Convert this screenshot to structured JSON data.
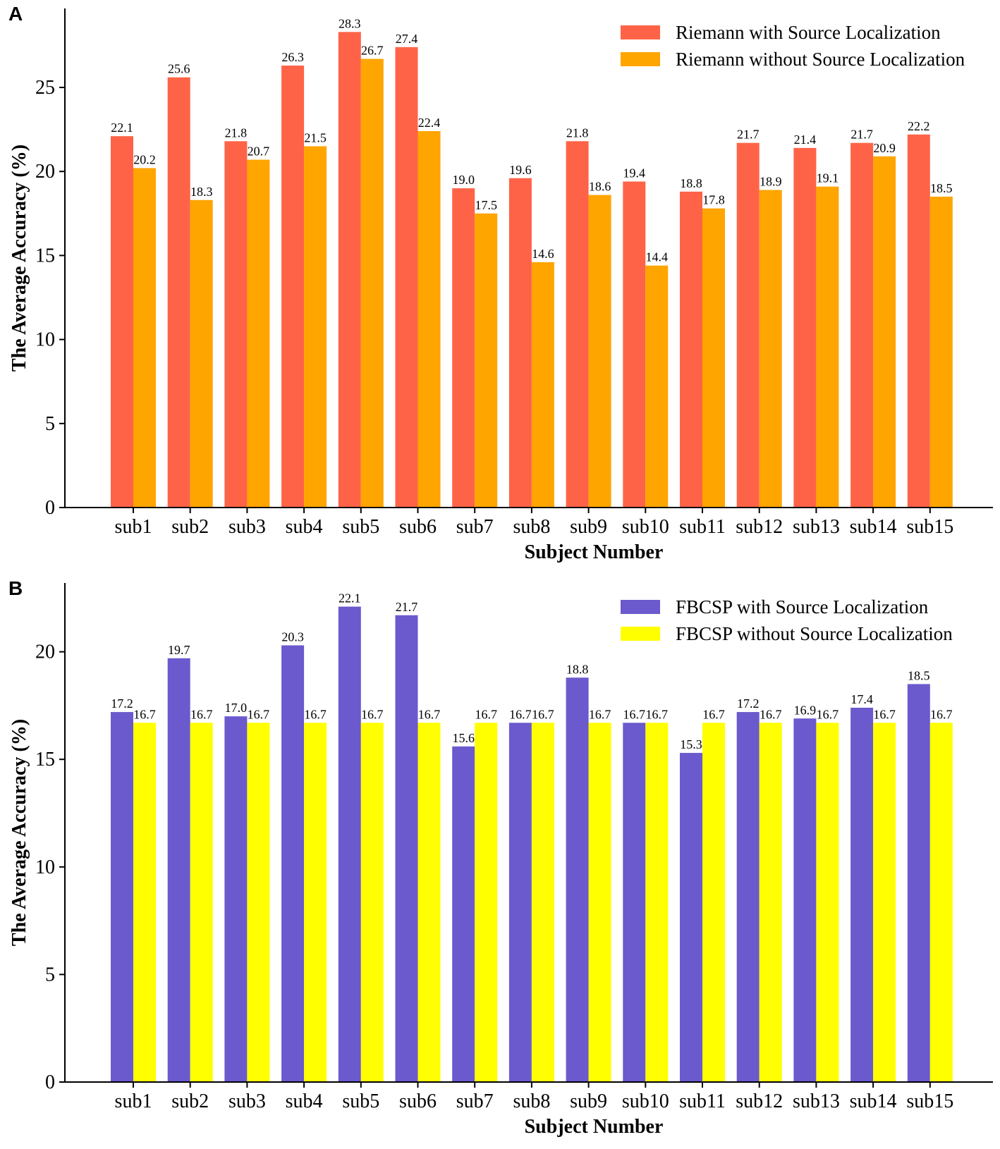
{
  "chart_data": [
    {
      "panel_label": "A",
      "type": "bar",
      "categories": [
        "sub1",
        "sub2",
        "sub3",
        "sub4",
        "sub5",
        "sub6",
        "sub7",
        "sub8",
        "sub9",
        "sub10",
        "sub11",
        "sub12",
        "sub13",
        "sub14",
        "sub15"
      ],
      "series": [
        {
          "name": "Riemann with Source Localization",
          "color": "#FF6347",
          "values": [
            22.1,
            25.6,
            21.8,
            26.3,
            28.3,
            27.4,
            19.0,
            19.6,
            21.8,
            19.4,
            18.8,
            21.7,
            21.4,
            21.7,
            22.2
          ],
          "labels": [
            "22.1",
            "25.6",
            "21.8",
            "26.3",
            "28.3",
            "27.4",
            "19.0",
            "19.6",
            "21.8",
            "19.4",
            "18.8",
            "21.7",
            "21.4",
            "21.7",
            "22.2"
          ]
        },
        {
          "name": "Riemann without Source Localization",
          "color": "#FFA500",
          "values": [
            20.2,
            18.3,
            20.7,
            21.5,
            26.7,
            22.4,
            17.5,
            14.6,
            18.6,
            14.4,
            17.8,
            18.9,
            19.1,
            20.9,
            18.5
          ],
          "labels": [
            "20.2",
            "18.3",
            "20.7",
            "21.5",
            "26.7",
            "22.4",
            "17.5",
            "14.6",
            "18.6",
            "14.4",
            "17.8",
            "18.9",
            "19.1",
            "20.9",
            "18.5"
          ]
        }
      ],
      "xlabel": "Subject Number",
      "ylabel": "The Average Accuracy (%)",
      "ylim": [
        0,
        29.7
      ],
      "yticks": [
        0,
        5,
        10,
        15,
        20,
        25
      ],
      "ytick_labels": [
        "0",
        "5",
        "10",
        "15",
        "20",
        "25"
      ],
      "legend_position": "top-right",
      "grid": false
    },
    {
      "panel_label": "B",
      "type": "bar",
      "categories": [
        "sub1",
        "sub2",
        "sub3",
        "sub4",
        "sub5",
        "sub6",
        "sub7",
        "sub8",
        "sub9",
        "sub10",
        "sub11",
        "sub12",
        "sub13",
        "sub14",
        "sub15"
      ],
      "series": [
        {
          "name": "FBCSP with Source Localization",
          "color": "#6A5ACD",
          "values": [
            17.2,
            19.7,
            17.0,
            20.3,
            22.1,
            21.7,
            15.6,
            16.7,
            18.8,
            16.7,
            15.3,
            17.2,
            16.9,
            17.4,
            18.5
          ],
          "labels": [
            "17.2",
            "19.7",
            "17.0",
            "20.3",
            "22.1",
            "21.7",
            "15.6",
            "16.7",
            "18.8",
            "16.7",
            "15.3",
            "17.2",
            "16.9",
            "17.4",
            "18.5"
          ]
        },
        {
          "name": "FBCSP without Source Localization",
          "color": "#FFFF00",
          "values": [
            16.7,
            16.7,
            16.7,
            16.7,
            16.7,
            16.7,
            16.7,
            16.7,
            16.7,
            16.7,
            16.7,
            16.7,
            16.7,
            16.7,
            16.7
          ],
          "labels": [
            "16.7",
            "16.7",
            "16.7",
            "16.7",
            "16.7",
            "16.7",
            "16.7",
            "16.7",
            "16.7",
            "16.7",
            "16.7",
            "16.7",
            "16.7",
            "16.7",
            "16.7"
          ]
        }
      ],
      "xlabel": "Subject Number",
      "ylabel": "The Average Accuracy (%)",
      "ylim": [
        0,
        23.2
      ],
      "yticks": [
        0,
        5,
        10,
        15,
        20
      ],
      "ytick_labels": [
        "0",
        "5",
        "10",
        "15",
        "20"
      ],
      "legend_position": "top-right",
      "grid": false
    }
  ]
}
